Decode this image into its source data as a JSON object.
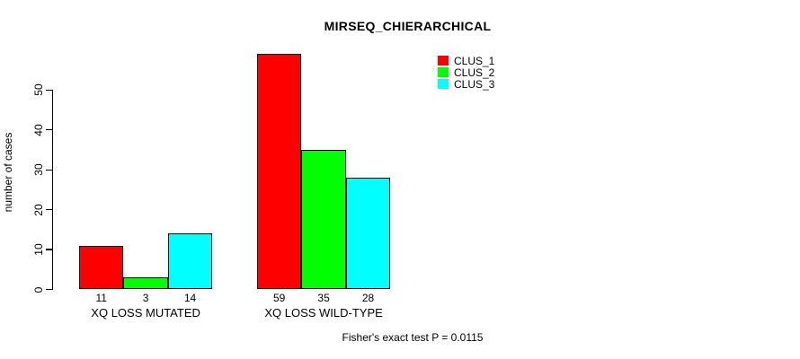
{
  "chart_data": {
    "type": "bar",
    "title": "MIRSEQ_CHIERARCHICAL",
    "xlabel": "",
    "ylabel": "number of cases",
    "categories": [
      "XQ LOSS MUTATED",
      "XQ LOSS WILD-TYPE"
    ],
    "series": [
      {
        "name": "CLUS_1",
        "color": "#ff0000",
        "values": [
          11,
          59
        ]
      },
      {
        "name": "CLUS_2",
        "color": "#00ff00",
        "values": [
          3,
          35
        ]
      },
      {
        "name": "CLUS_3",
        "color": "#00ffff",
        "values": [
          14,
          28
        ]
      }
    ],
    "bar_value_labels": [
      [
        11,
        3,
        14
      ],
      [
        59,
        35,
        28
      ]
    ],
    "yticks": [
      0,
      10,
      20,
      30,
      40,
      50
    ],
    "ylim": [
      0,
      59
    ],
    "grid": false,
    "legend_position": "top-right",
    "annotation": "Fisher's exact test P = 0.0115",
    "bar_border_color": "#000000",
    "background_color": "#ffffff"
  }
}
